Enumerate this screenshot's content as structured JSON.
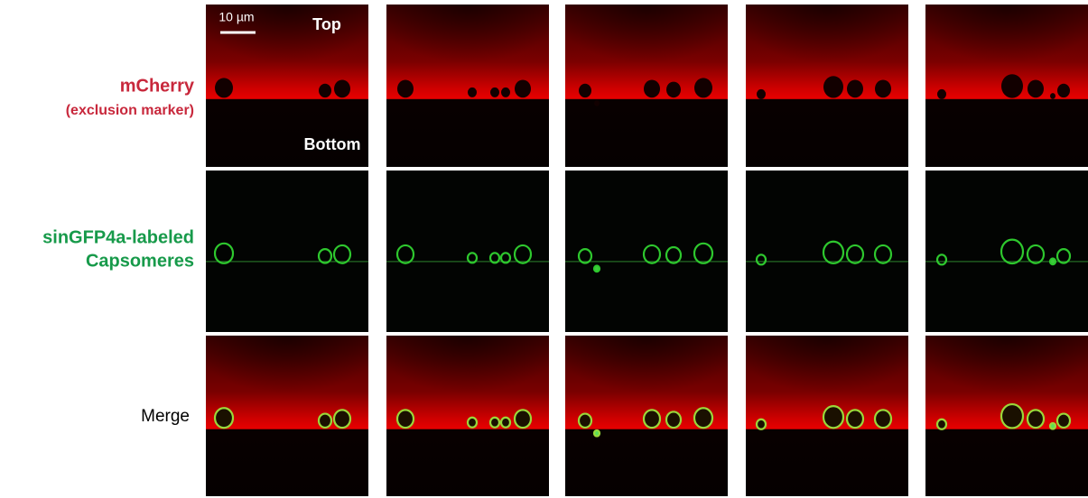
{
  "figure": {
    "scale_bar": "10 µm",
    "top_label": "Top",
    "bottom_label": "Bottom",
    "rows": [
      {
        "lines": [
          "mCherry",
          "(exclusion marker)"
        ]
      },
      {
        "lines": [
          "sinGFP4a-labeled",
          "Capsomeres"
        ]
      },
      {
        "lines": [
          "Merge"
        ]
      }
    ]
  }
}
